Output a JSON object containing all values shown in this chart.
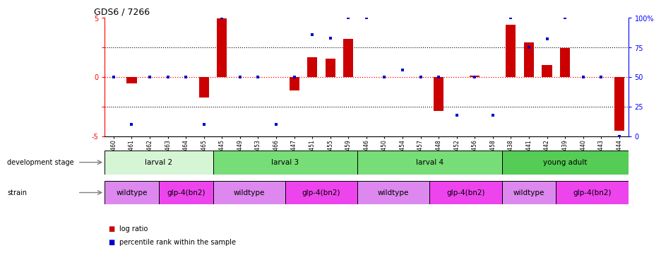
{
  "title": "GDS6 / 7266",
  "samples": [
    "GSM460",
    "GSM461",
    "GSM462",
    "GSM463",
    "GSM464",
    "GSM465",
    "GSM445",
    "GSM449",
    "GSM453",
    "GSM466",
    "GSM447",
    "GSM451",
    "GSM455",
    "GSM459",
    "GSM446",
    "GSM450",
    "GSM454",
    "GSM457",
    "GSM448",
    "GSM452",
    "GSM456",
    "GSM458",
    "GSM438",
    "GSM441",
    "GSM442",
    "GSM439",
    "GSM440",
    "GSM443",
    "GSM444"
  ],
  "log_ratio": [
    0.0,
    -0.5,
    0.0,
    0.0,
    0.0,
    -1.7,
    4.95,
    0.0,
    0.0,
    0.0,
    -1.15,
    1.65,
    1.55,
    3.25,
    0.0,
    0.0,
    0.0,
    0.0,
    -2.85,
    0.0,
    0.12,
    0.0,
    4.4,
    2.95,
    1.05,
    2.45,
    0.0,
    0.0,
    -4.5
  ],
  "percentile": [
    50,
    10,
    50,
    50,
    50,
    10,
    100,
    50,
    50,
    10,
    50,
    86,
    83,
    100,
    100,
    50,
    56,
    50,
    50,
    18,
    50,
    18,
    100,
    75,
    82,
    100,
    50,
    50,
    0
  ],
  "dev_stage_groups": [
    {
      "label": "larval 2",
      "start": 0,
      "end": 6,
      "color": "#d5f5d5"
    },
    {
      "label": "larval 3",
      "start": 6,
      "end": 14,
      "color": "#77dd77"
    },
    {
      "label": "larval 4",
      "start": 14,
      "end": 22,
      "color": "#77dd77"
    },
    {
      "label": "young adult",
      "start": 22,
      "end": 29,
      "color": "#55cc55"
    }
  ],
  "strain_groups": [
    {
      "label": "wildtype",
      "start": 0,
      "end": 3,
      "color": "#dd88ee"
    },
    {
      "label": "glp-4(bn2)",
      "start": 3,
      "end": 6,
      "color": "#ee44ee"
    },
    {
      "label": "wildtype",
      "start": 6,
      "end": 10,
      "color": "#dd88ee"
    },
    {
      "label": "glp-4(bn2)",
      "start": 10,
      "end": 14,
      "color": "#ee44ee"
    },
    {
      "label": "wildtype",
      "start": 14,
      "end": 18,
      "color": "#dd88ee"
    },
    {
      "label": "glp-4(bn2)",
      "start": 18,
      "end": 22,
      "color": "#ee44ee"
    },
    {
      "label": "wildtype",
      "start": 22,
      "end": 25,
      "color": "#dd88ee"
    },
    {
      "label": "glp-4(bn2)",
      "start": 25,
      "end": 29,
      "color": "#ee44ee"
    }
  ],
  "ylim": [
    -5,
    5
  ],
  "bar_color": "#cc0000",
  "dot_color": "#0000cc",
  "right_axis_labels": [
    "0",
    "25",
    "50",
    "75",
    "100%"
  ],
  "background_color": "#ffffff",
  "fig_width": 9.21,
  "fig_height": 3.57
}
